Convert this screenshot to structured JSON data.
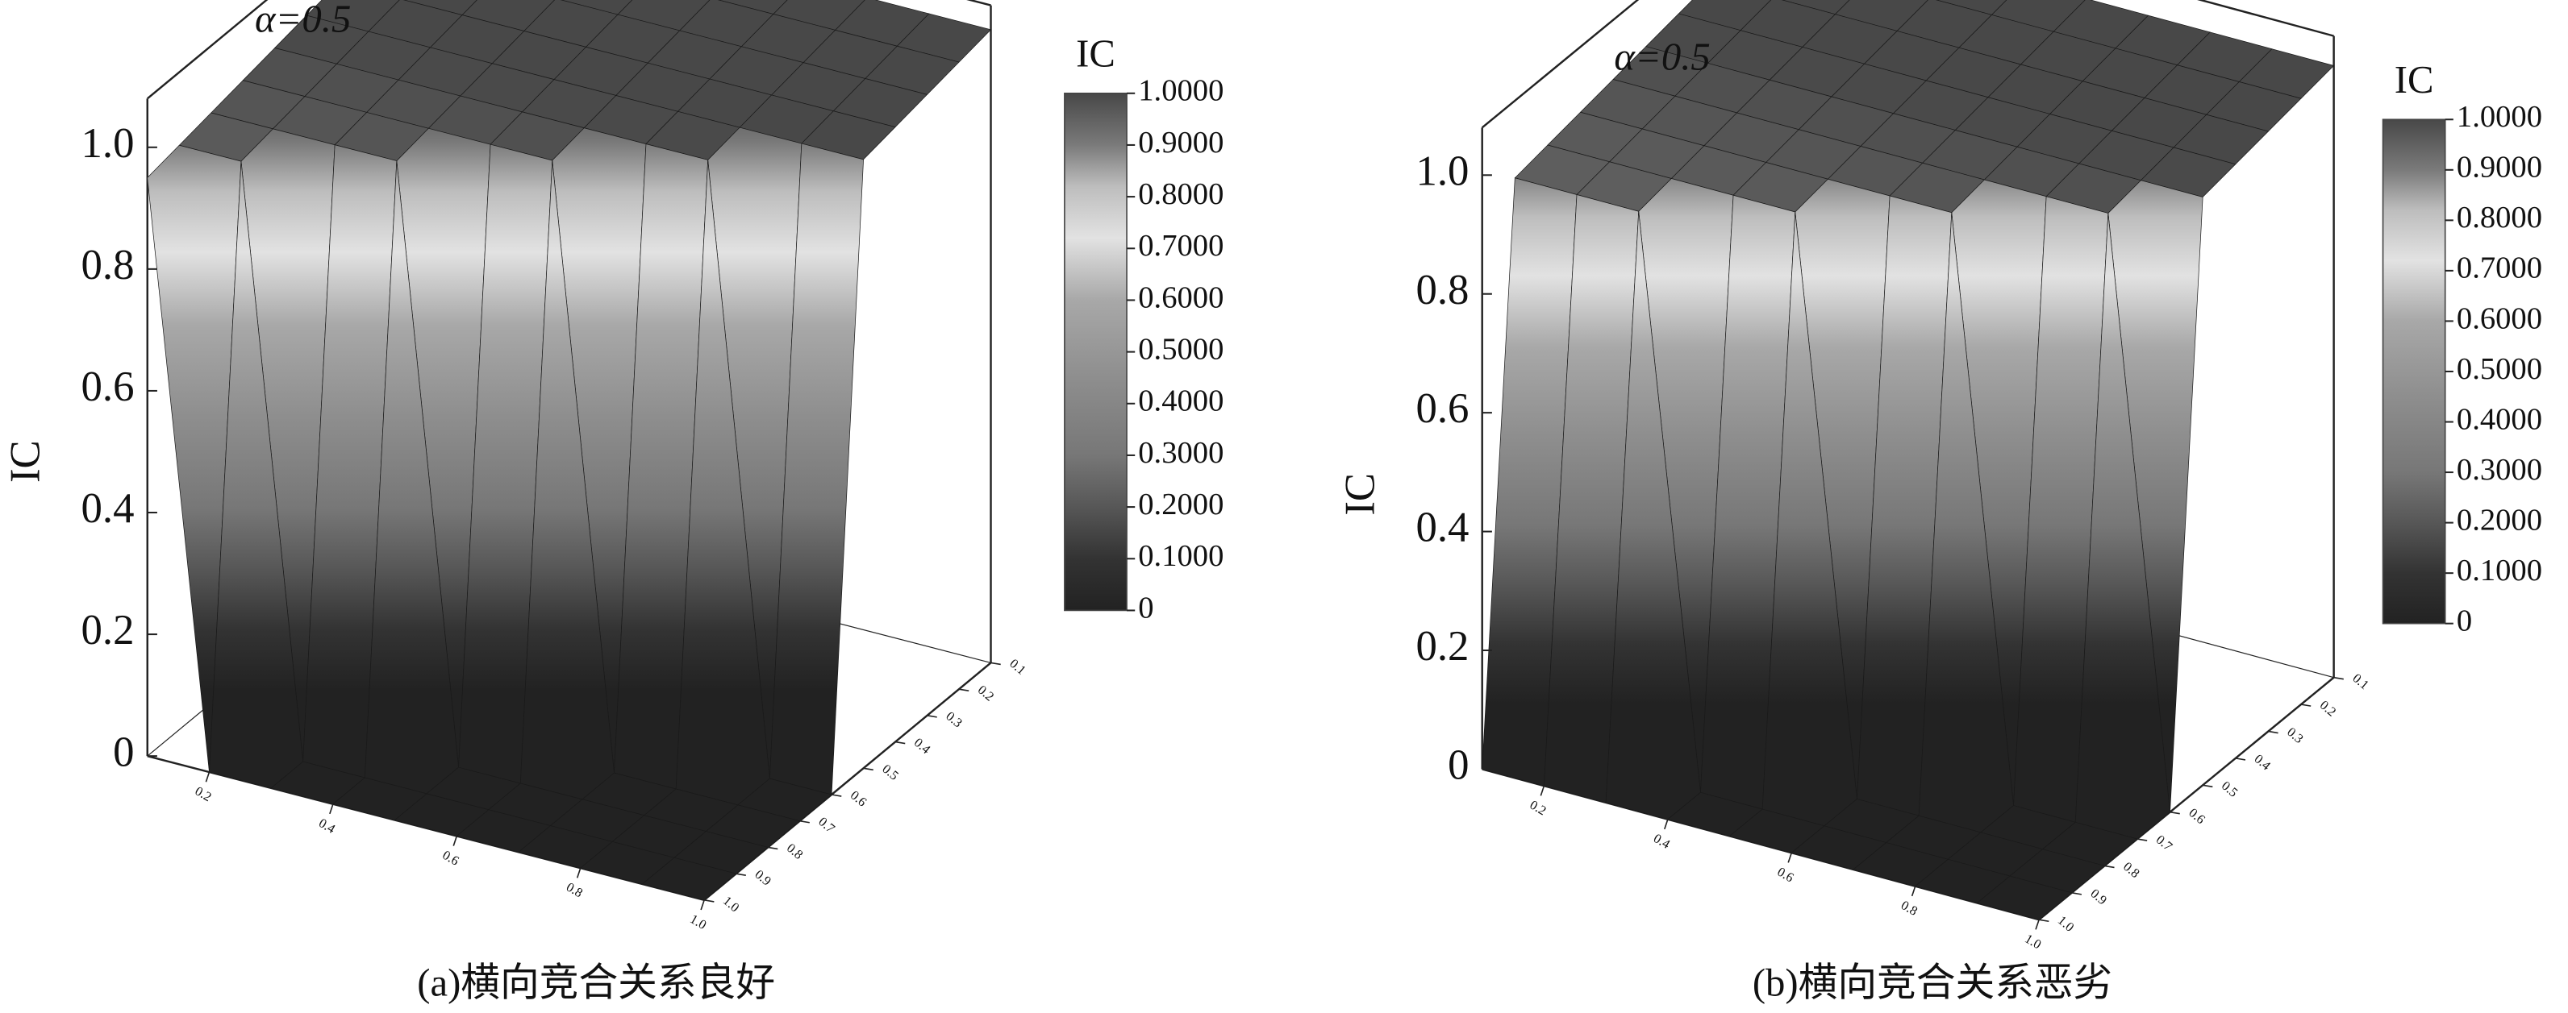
{
  "chart_data": [
    {
      "type": "surface",
      "title": "α=0.5",
      "zlabel": "IC",
      "colorbar_title": "IC",
      "caption": "(a)横向竞合关系良好",
      "x": [
        0.1,
        0.2,
        0.3,
        0.4,
        0.5,
        0.6,
        0.7,
        0.8,
        0.9,
        1.0
      ],
      "y": [
        0.1,
        0.2,
        0.3,
        0.4,
        0.5,
        0.6,
        0.7,
        0.8,
        0.9,
        1.0
      ],
      "z": [
        [
          1.04,
          1.04,
          1.04,
          1.04,
          1.04,
          1.04,
          1.04,
          1.04,
          1.04,
          1.04
        ],
        [
          1.03,
          1.03,
          1.03,
          1.03,
          1.03,
          1.03,
          1.03,
          1.03,
          1.03,
          1.03
        ],
        [
          1.02,
          1.02,
          1.02,
          1.02,
          1.02,
          1.02,
          1.02,
          1.02,
          1.02,
          1.02
        ],
        [
          1.01,
          1.01,
          1.01,
          1.01,
          1.01,
          1.01,
          1.01,
          1.01,
          1.01,
          1.01
        ],
        [
          1.0,
          1.0,
          1.0,
          1.0,
          1.0,
          1.0,
          1.0,
          1.0,
          1.0,
          1.0
        ],
        [
          0.99,
          0.99,
          0.99,
          0.99,
          0.99,
          0.99,
          0.99,
          0.99,
          0,
          0
        ],
        [
          0.98,
          0.98,
          0.98,
          0.98,
          0.98,
          0.98,
          0,
          0,
          0,
          0
        ],
        [
          0.97,
          0.97,
          0.97,
          0.97,
          0,
          0,
          0,
          0,
          0,
          0
        ],
        [
          0.96,
          0.96,
          0,
          0,
          0,
          0,
          0,
          0,
          0,
          0
        ],
        [
          0.95,
          0,
          0,
          0,
          0,
          0,
          0,
          0,
          0,
          0
        ]
      ],
      "xlim": [
        0.1,
        1.0
      ],
      "ylim": [
        0.1,
        1.0
      ],
      "zlim": [
        0,
        1.08
      ],
      "xticks": [
        0.2,
        0.4,
        0.6,
        0.8,
        {
          "value": 1.0,
          "label": "1.0"
        }
      ],
      "yticks": [
        0.1,
        0.2,
        0.3,
        0.4,
        0.5,
        0.6,
        0.7,
        0.8,
        0.9,
        {
          "value": 1.0,
          "label": "1.0"
        }
      ],
      "zticks": [
        0,
        0.2,
        0.4,
        0.6,
        0.8,
        {
          "value": 1.0,
          "label": "1.0"
        }
      ],
      "cblim": [
        0,
        1
      ],
      "cbticks": [
        0,
        {
          "value": 0.1,
          "label": "0.1000"
        },
        {
          "value": 0.2,
          "label": "0.2000"
        },
        {
          "value": 0.3,
          "label": "0.3000"
        },
        {
          "value": 0.4,
          "label": "0.4000"
        },
        {
          "value": 0.5,
          "label": "0.5000"
        },
        {
          "value": 0.6,
          "label": "0.6000"
        },
        {
          "value": 0.7,
          "label": "0.7000"
        },
        {
          "value": 0.8,
          "label": "0.8000"
        },
        {
          "value": 0.9,
          "label": "0.9000"
        },
        {
          "value": 1.0,
          "label": "1.0000"
        }
      ],
      "colormap": [
        {
          "at": 0,
          "color": "#222222"
        },
        {
          "at": 0.1,
          "color": "#333333"
        },
        {
          "at": 0.2,
          "color": "#575757"
        },
        {
          "at": 0.3,
          "color": "#777777"
        },
        {
          "at": 0.45,
          "color": "#8e8e8e"
        },
        {
          "at": 0.6,
          "color": "#a8a8a8"
        },
        {
          "at": 0.72,
          "color": "#e2e2e2"
        },
        {
          "at": 0.82,
          "color": "#bdbdbd"
        },
        {
          "at": 0.9,
          "color": "#7a7a7a"
        },
        {
          "at": 1.0,
          "color": "#484848"
        }
      ]
    },
    {
      "type": "surface",
      "title": "α=0.5",
      "zlabel": "IC",
      "colorbar_title": "IC",
      "caption": "(b)横向竞合关系恶劣",
      "x": [
        0.1,
        0.2,
        0.3,
        0.4,
        0.5,
        0.6,
        0.7,
        0.8,
        0.9,
        1.0
      ],
      "y": [
        0.1,
        0.2,
        0.3,
        0.4,
        0.5,
        0.6,
        0.7,
        0.8,
        0.9,
        1.0
      ],
      "z": [
        [
          1.03,
          1.03,
          1.03,
          1.03,
          1.03,
          1.03,
          1.03,
          1.03,
          1.03,
          1.03
        ],
        [
          1.02,
          1.02,
          1.02,
          1.02,
          1.02,
          1.02,
          1.02,
          1.02,
          1.02,
          1.02
        ],
        [
          1.01,
          1.01,
          1.01,
          1.01,
          1.01,
          1.01,
          1.01,
          1.01,
          1.01,
          1.01
        ],
        [
          1.0,
          1.0,
          1.0,
          1.0,
          1.0,
          1.0,
          1.0,
          1.0,
          1.0,
          1.0
        ],
        [
          0.99,
          0.99,
          0.99,
          0.99,
          0.99,
          0.99,
          0.99,
          0.99,
          0.99,
          0.99
        ],
        [
          0.98,
          0.98,
          0.98,
          0.98,
          0.98,
          0.98,
          0.98,
          0.98,
          0.98,
          0
        ],
        [
          0.97,
          0.97,
          0.97,
          0.97,
          0.97,
          0.97,
          0.97,
          0,
          0,
          0
        ],
        [
          0.96,
          0.96,
          0.96,
          0.96,
          0.96,
          0,
          0,
          0,
          0,
          0
        ],
        [
          0.95,
          0.95,
          0.95,
          0,
          0,
          0,
          0,
          0,
          0,
          0
        ],
        [
          0,
          0,
          0,
          0,
          0,
          0,
          0,
          0,
          0,
          0
        ]
      ],
      "xlim": [
        0.1,
        1.0
      ],
      "ylim": [
        0.1,
        1.0
      ],
      "zlim": [
        0,
        1.08
      ],
      "xticks": [
        0.2,
        0.4,
        0.6,
        0.8,
        {
          "value": 1.0,
          "label": "1.0"
        }
      ],
      "yticks": [
        0.1,
        0.2,
        0.3,
        0.4,
        0.5,
        0.6,
        0.7,
        0.8,
        0.9,
        {
          "value": 1.0,
          "label": "1.0"
        }
      ],
      "zticks": [
        0,
        0.2,
        0.4,
        0.6,
        0.8,
        {
          "value": 1.0,
          "label": "1.0"
        }
      ],
      "cblim": [
        0,
        1
      ],
      "cbticks": [
        0,
        {
          "value": 0.1,
          "label": "0.1000"
        },
        {
          "value": 0.2,
          "label": "0.2000"
        },
        {
          "value": 0.3,
          "label": "0.3000"
        },
        {
          "value": 0.4,
          "label": "0.4000"
        },
        {
          "value": 0.5,
          "label": "0.5000"
        },
        {
          "value": 0.6,
          "label": "0.6000"
        },
        {
          "value": 0.7,
          "label": "0.7000"
        },
        {
          "value": 0.8,
          "label": "0.8000"
        },
        {
          "value": 0.9,
          "label": "0.9000"
        },
        {
          "value": 1.0,
          "label": "1.0000"
        }
      ],
      "colormap": [
        {
          "at": 0,
          "color": "#222222"
        },
        {
          "at": 0.1,
          "color": "#333333"
        },
        {
          "at": 0.2,
          "color": "#575757"
        },
        {
          "at": 0.3,
          "color": "#777777"
        },
        {
          "at": 0.45,
          "color": "#8e8e8e"
        },
        {
          "at": 0.6,
          "color": "#a8a8a8"
        },
        {
          "at": 0.72,
          "color": "#e2e2e2"
        },
        {
          "at": 0.82,
          "color": "#bdbdbd"
        },
        {
          "at": 0.9,
          "color": "#7a7a7a"
        },
        {
          "at": 1.0,
          "color": "#484848"
        }
      ]
    }
  ]
}
